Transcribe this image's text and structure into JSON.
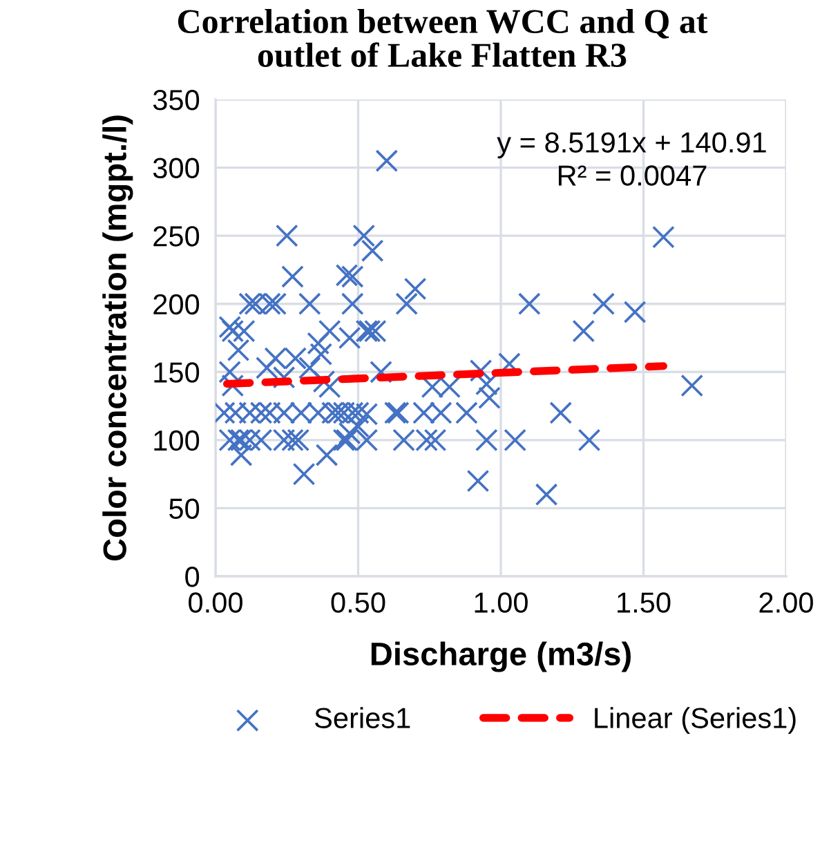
{
  "chart_data": {
    "type": "scatter",
    "title": "Correlation between WCC and Q at\noutlet of Lake Flatten R3",
    "xlabel": "Discharge (m3/s)",
    "ylabel": "Color concentration (mgpt./l)",
    "xlim": [
      0,
      2
    ],
    "xticks": [
      {
        "value": 0,
        "label": "0.00"
      },
      {
        "value": 0.5,
        "label": "0.50"
      },
      {
        "value": 1,
        "label": "1.00"
      },
      {
        "value": 1.5,
        "label": "1.50"
      },
      {
        "value": 2,
        "label": "2.00"
      }
    ],
    "ylim": [
      0,
      350
    ],
    "yticks": [
      0,
      50,
      100,
      150,
      200,
      250,
      300,
      350
    ],
    "grid": true,
    "legend": "bottom",
    "annotations": [
      "y = 8.5191x + 140.91\nR² = 0.0047"
    ],
    "series": [
      {
        "name": "Series1",
        "color": "#4472c4",
        "marker": "cross",
        "x": [
          0.05,
          0.03,
          0.06,
          0.1,
          0.08,
          0.06,
          0.05,
          0.12,
          0.14,
          0.19,
          0.21,
          0.07,
          0.12,
          0.16,
          0.19,
          0.24,
          0.3,
          0.36,
          0.41,
          0.43,
          0.45,
          0.48,
          0.5,
          0.05,
          0.08,
          0.09,
          0.12,
          0.16,
          0.24,
          0.27,
          0.29,
          0.45,
          0.46,
          0.53,
          0.09,
          0.25,
          0.27,
          0.33,
          0.18,
          0.21,
          0.28,
          0.24,
          0.31,
          0.39,
          0.36,
          0.4,
          0.37,
          0.38,
          0.4,
          0.33,
          0.46,
          0.48,
          0.48,
          0.47,
          0.52,
          0.55,
          0.6,
          0.53,
          0.54,
          0.56,
          0.58,
          0.53,
          0.5,
          0.47,
          0.63,
          0.64,
          0.66,
          0.67,
          0.7,
          0.73,
          0.79,
          0.74,
          0.77,
          0.76,
          0.82,
          0.88,
          0.92,
          0.93,
          0.95,
          0.96,
          0.95,
          1.03,
          1.05,
          1.1,
          1.16,
          1.21,
          1.29,
          1.31,
          1.36,
          1.47,
          1.57,
          1.67
        ],
        "values": [
          150,
          120,
          180,
          180,
          166,
          140,
          183,
          200,
          200,
          200,
          200,
          120,
          120,
          120,
          120,
          120,
          120,
          120,
          120,
          120,
          120,
          120,
          120,
          100,
          100,
          100,
          100,
          100,
          100,
          100,
          100,
          100,
          100,
          100,
          89,
          250,
          220,
          200,
          153,
          160,
          160,
          146,
          75,
          89,
          171,
          180,
          163,
          143,
          139,
          153,
          221,
          220,
          200,
          175,
          250,
          239,
          305,
          180,
          180,
          180,
          150,
          119,
          110,
          105,
          120,
          120,
          100,
          200,
          211,
          120,
          120,
          100,
          100,
          139,
          139,
          120,
          70,
          151,
          141,
          131,
          100,
          156,
          100,
          200,
          60,
          120,
          180,
          100,
          200,
          194,
          249,
          140
        ]
      },
      {
        "name": "Linear (Series1)",
        "color": "#ff0000",
        "type": "line",
        "line_style": "dashed",
        "marker": "none",
        "x": [
          0.04,
          1.57
        ],
        "values": [
          141.3,
          154.3
        ]
      }
    ]
  }
}
